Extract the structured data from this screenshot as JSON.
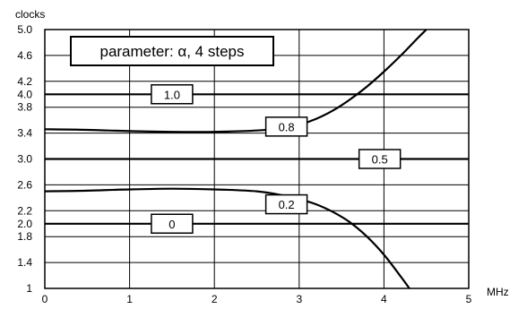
{
  "chart_data": {
    "type": "line",
    "title": "parameter: α, 4 steps",
    "xlabel": "MHz",
    "ylabel": "clocks",
    "xlim": [
      0,
      5
    ],
    "ylim": [
      1,
      5
    ],
    "grid": true,
    "x_ticks": [
      "0",
      "1",
      "2",
      "3",
      "4",
      "5"
    ],
    "y_ticks": [
      {
        "value": 1.0,
        "label": "1"
      },
      {
        "value": 1.4,
        "label": "1.4"
      },
      {
        "value": 1.8,
        "label": "1.8"
      },
      {
        "value": 2.0,
        "label": "2.0"
      },
      {
        "value": 2.2,
        "label": "2.2"
      },
      {
        "value": 2.6,
        "label": "2.6"
      },
      {
        "value": 3.0,
        "label": "3.0"
      },
      {
        "value": 3.4,
        "label": "3.4"
      },
      {
        "value": 3.8,
        "label": "3.8"
      },
      {
        "value": 4.0,
        "label": "4.0"
      },
      {
        "value": 4.2,
        "label": "4.2"
      },
      {
        "value": 4.6,
        "label": "4.6"
      },
      {
        "value": 5.0,
        "label": "5.0"
      }
    ],
    "series": [
      {
        "name": "1.0",
        "label_at": [
          1.5,
          4.0
        ],
        "x": [
          0,
          5
        ],
        "y": [
          4.0,
          4.0
        ]
      },
      {
        "name": "0.8",
        "label_at": [
          2.85,
          3.5
        ],
        "x": [
          0,
          0.5,
          1.0,
          1.5,
          2.0,
          2.5,
          2.8,
          3.0,
          3.2,
          3.4,
          3.6,
          3.8,
          4.0,
          4.2,
          4.4,
          4.5
        ],
        "y": [
          3.46,
          3.45,
          3.43,
          3.42,
          3.42,
          3.44,
          3.48,
          3.53,
          3.62,
          3.75,
          3.92,
          4.12,
          4.35,
          4.6,
          4.87,
          5.0
        ]
      },
      {
        "name": "0.5",
        "label_at": [
          3.95,
          3.0
        ],
        "x": [
          0,
          5
        ],
        "y": [
          3.0,
          3.0
        ]
      },
      {
        "name": "0.2",
        "label_at": [
          2.85,
          2.3
        ],
        "x": [
          0,
          0.5,
          1.0,
          1.5,
          2.0,
          2.5,
          2.8,
          3.0,
          3.2,
          3.4,
          3.6,
          3.8,
          4.0,
          4.2,
          4.3
        ],
        "y": [
          2.5,
          2.51,
          2.53,
          2.54,
          2.53,
          2.5,
          2.44,
          2.38,
          2.3,
          2.18,
          2.02,
          1.8,
          1.52,
          1.18,
          1.0
        ]
      },
      {
        "name": "0",
        "label_at": [
          1.5,
          2.0
        ],
        "x": [
          0,
          5
        ],
        "y": [
          2.0,
          2.0
        ]
      }
    ]
  }
}
